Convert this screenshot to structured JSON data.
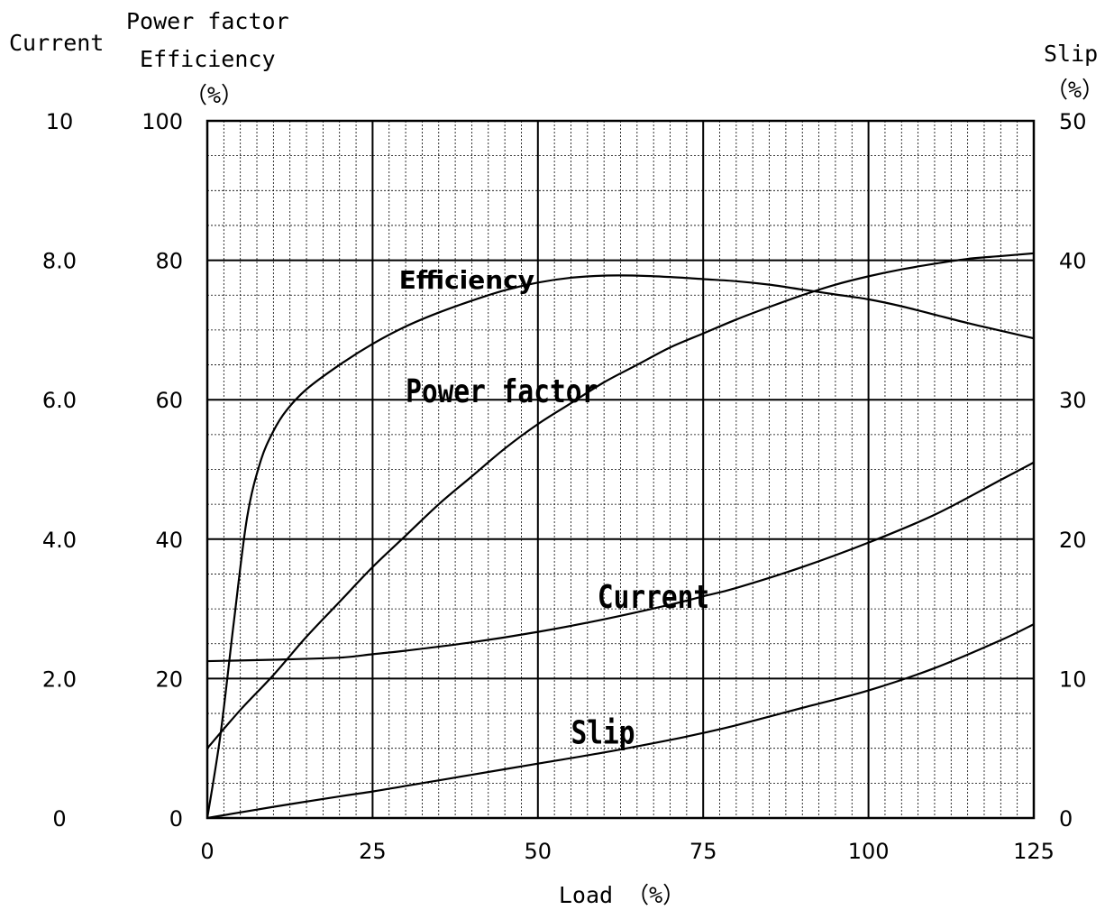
{
  "chart_data": {
    "type": "line",
    "x": {
      "label": "Load （%）",
      "range": [
        0,
        125
      ],
      "ticks": [
        0,
        25,
        50,
        75,
        100,
        125
      ]
    },
    "axes": {
      "current": {
        "title": "Current",
        "range": [
          0,
          10
        ],
        "tick_labels": [
          "0",
          "2.0",
          "4.0",
          "6.0",
          "8.0",
          "10"
        ]
      },
      "pf_eff": {
        "title_lines": [
          "Power factor",
          "Efficiency",
          "（%）"
        ],
        "range": [
          0,
          100
        ],
        "tick_labels": [
          "0",
          "20",
          "40",
          "60",
          "80",
          "100"
        ]
      },
      "slip": {
        "title_lines": [
          "Slip",
          "（%）"
        ],
        "range": [
          0,
          50
        ],
        "tick_labels": [
          "0",
          "10",
          "20",
          "30",
          "40",
          "50"
        ]
      }
    },
    "grid": true,
    "series": [
      {
        "name": "Efficiency",
        "axis": "pf_eff",
        "points": [
          [
            0,
            0
          ],
          [
            2,
            12
          ],
          [
            4,
            28
          ],
          [
            6,
            43
          ],
          [
            8,
            51
          ],
          [
            10,
            55.5
          ],
          [
            12,
            58.5
          ],
          [
            15,
            61.5
          ],
          [
            20,
            65
          ],
          [
            25,
            68
          ],
          [
            30,
            70.5
          ],
          [
            35,
            72.5
          ],
          [
            40,
            74.2
          ],
          [
            45,
            75.7
          ],
          [
            50,
            76.8
          ],
          [
            55,
            77.5
          ],
          [
            60,
            77.8
          ],
          [
            65,
            77.8
          ],
          [
            70,
            77.6
          ],
          [
            75,
            77.3
          ],
          [
            80,
            77
          ],
          [
            85,
            76.5
          ],
          [
            90,
            75.8
          ],
          [
            95,
            75.1
          ],
          [
            100,
            74.4
          ],
          [
            105,
            73.4
          ],
          [
            110,
            72.2
          ],
          [
            115,
            71
          ],
          [
            120,
            69.9
          ],
          [
            125,
            68.8
          ]
        ]
      },
      {
        "name": "Power factor",
        "axis": "pf_eff",
        "points": [
          [
            0,
            10
          ],
          [
            5,
            15.5
          ],
          [
            10,
            20.5
          ],
          [
            15,
            26
          ],
          [
            20,
            31
          ],
          [
            25,
            36
          ],
          [
            30,
            40.5
          ],
          [
            35,
            45
          ],
          [
            40,
            49
          ],
          [
            45,
            53
          ],
          [
            50,
            56.5
          ],
          [
            55,
            59.5
          ],
          [
            60,
            62.5
          ],
          [
            65,
            65
          ],
          [
            70,
            67.5
          ],
          [
            75,
            69.5
          ],
          [
            80,
            71.5
          ],
          [
            85,
            73.3
          ],
          [
            90,
            75
          ],
          [
            95,
            76.5
          ],
          [
            100,
            77.7
          ],
          [
            105,
            78.7
          ],
          [
            110,
            79.5
          ],
          [
            115,
            80.2
          ],
          [
            120,
            80.6
          ],
          [
            125,
            81
          ]
        ]
      },
      {
        "name": "Current",
        "axis": "current",
        "points": [
          [
            0,
            2.25
          ],
          [
            10,
            2.27
          ],
          [
            20,
            2.3
          ],
          [
            25,
            2.35
          ],
          [
            30,
            2.4
          ],
          [
            40,
            2.52
          ],
          [
            50,
            2.67
          ],
          [
            60,
            2.85
          ],
          [
            70,
            3.06
          ],
          [
            75,
            3.18
          ],
          [
            80,
            3.3
          ],
          [
            90,
            3.6
          ],
          [
            100,
            3.95
          ],
          [
            110,
            4.35
          ],
          [
            120,
            4.85
          ],
          [
            125,
            5.1
          ]
        ]
      },
      {
        "name": "Slip",
        "axis": "slip",
        "points": [
          [
            0,
            0
          ],
          [
            10,
            0.8
          ],
          [
            20,
            1.55
          ],
          [
            25,
            1.9
          ],
          [
            30,
            2.3
          ],
          [
            40,
            3.1
          ],
          [
            50,
            3.9
          ],
          [
            60,
            4.7
          ],
          [
            70,
            5.6
          ],
          [
            75,
            6.1
          ],
          [
            80,
            6.65
          ],
          [
            90,
            7.9
          ],
          [
            100,
            9.15
          ],
          [
            110,
            10.75
          ],
          [
            120,
            12.75
          ],
          [
            125,
            13.9
          ]
        ]
      }
    ],
    "annotations": [
      {
        "text": "Efficiency",
        "series": "Efficiency",
        "x": 29,
        "y": 77
      },
      {
        "text": "Power factor",
        "series": "Power factor",
        "x": 30,
        "y": 61
      },
      {
        "text": "Current",
        "series": "Current",
        "x": 59,
        "y": 31.5
      },
      {
        "text": "Slip",
        "series": "Slip",
        "x": 55,
        "y": 12
      }
    ]
  }
}
